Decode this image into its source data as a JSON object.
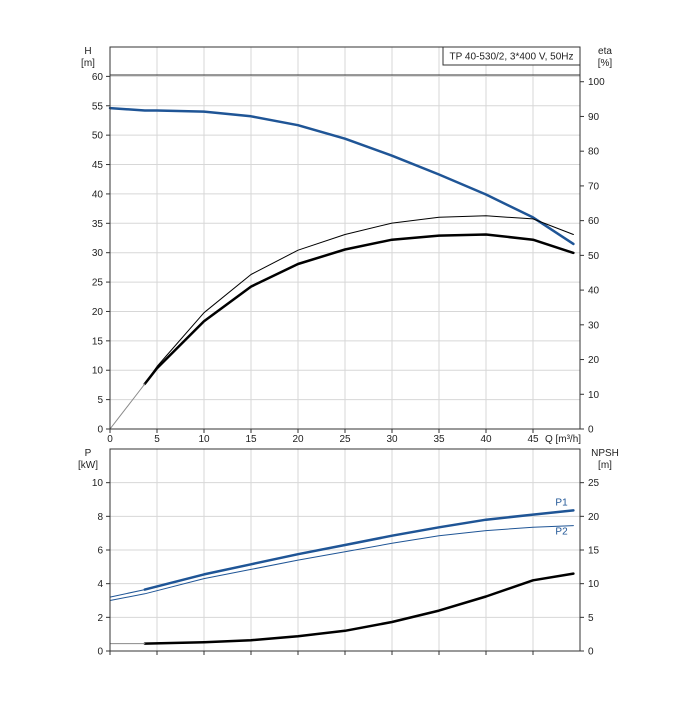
{
  "chart_data": [
    {
      "type": "line",
      "title": "TP 40-530/2, 3*400 V, 50Hz",
      "ylabel_left": "H",
      "ylabel_left_unit": "[m]",
      "ylabel_right": "eta",
      "ylabel_right_unit": "[%]",
      "xlabel": "Q [m³/h]",
      "xlim": [
        0,
        50
      ],
      "ylim_left": [
        0,
        65
      ],
      "ylim_right": [
        0,
        110
      ],
      "x_ticks": [
        0,
        5,
        10,
        15,
        20,
        25,
        30,
        35,
        40,
        45
      ],
      "x_tick_labels": [
        "0",
        "5",
        "10",
        "15",
        "20",
        "25",
        "30",
        "35",
        "40",
        "45"
      ],
      "y_left_ticks": [
        0,
        5,
        10,
        15,
        20,
        25,
        30,
        35,
        40,
        45,
        50,
        55,
        60
      ],
      "y_left_tick_labels": [
        "0",
        "5",
        "10",
        "15",
        "20",
        "25",
        "30",
        "35",
        "40",
        "45",
        "50",
        "55",
        "60"
      ],
      "y_right_ticks": [
        0,
        10,
        20,
        30,
        40,
        50,
        60,
        70,
        80,
        90,
        100
      ],
      "y_right_tick_labels": [
        "0",
        "10",
        "20",
        "30",
        "40",
        "50",
        "60",
        "70",
        "80",
        "90",
        "100"
      ],
      "grid": true,
      "series": [
        {
          "axis": "left",
          "color": "#1f5596",
          "width": 2.5,
          "x": [
            0,
            3.7,
            5,
            10,
            15,
            20,
            25,
            30,
            35,
            40,
            45,
            49.3
          ],
          "y": [
            54.6,
            54.2,
            54.2,
            54.0,
            53.2,
            51.7,
            49.4,
            46.5,
            43.3,
            39.9,
            36.0,
            31.5
          ]
        },
        {
          "axis": "left",
          "color": "#1f5596",
          "width": 1,
          "x": [
            0,
            3.7
          ],
          "y": [
            54.6,
            54.2
          ]
        },
        {
          "axis": "right",
          "color": "#000000",
          "width": 1,
          "x": [
            3.7,
            5,
            10,
            15,
            20,
            25,
            30,
            35,
            40,
            45,
            49.3
          ],
          "y": [
            13,
            18,
            33.5,
            44.5,
            51.5,
            56,
            59.3,
            61,
            61.4,
            60.5,
            56
          ]
        },
        {
          "axis": "right",
          "color": "#000000",
          "width": 2.5,
          "x": [
            3.7,
            5,
            10,
            15,
            20,
            25,
            30,
            35,
            40,
            45,
            49.3
          ],
          "y": [
            13,
            17.5,
            31,
            41,
            47.5,
            51.7,
            54.5,
            55.7,
            56,
            54.5,
            50.7
          ]
        },
        {
          "axis": "right",
          "color": "#8a8a8a",
          "width": 1,
          "x": [
            0,
            1,
            2,
            3,
            3.7
          ],
          "y": [
            0,
            3.5,
            7,
            10.5,
            13
          ]
        }
      ]
    },
    {
      "type": "line",
      "ylabel_left": "P",
      "ylabel_left_unit": "[kW]",
      "ylabel_right": "NPSH",
      "ylabel_right_unit": "[m]",
      "xlim": [
        0,
        50
      ],
      "ylim_left": [
        0,
        12
      ],
      "ylim_right": [
        0,
        30
      ],
      "y_left_ticks": [
        0,
        2,
        4,
        6,
        8,
        10
      ],
      "y_left_tick_labels": [
        "0",
        "2",
        "4",
        "6",
        "8",
        "10"
      ],
      "y_right_ticks": [
        0,
        5,
        10,
        15,
        20,
        25
      ],
      "y_right_tick_labels": [
        "0",
        "5",
        "10",
        "15",
        "20",
        "25"
      ],
      "grid": true,
      "series": [
        {
          "name": "P1",
          "axis": "left",
          "color": "#1f5596",
          "width": 2.5,
          "x": [
            3.7,
            10,
            15,
            20,
            25,
            30,
            35,
            40,
            45,
            49.3
          ],
          "y": [
            3.65,
            4.55,
            5.15,
            5.75,
            6.3,
            6.85,
            7.35,
            7.8,
            8.1,
            8.35
          ]
        },
        {
          "name": "",
          "axis": "left",
          "color": "#1f5596",
          "width": 1,
          "x": [
            0,
            3.7
          ],
          "y": [
            3.2,
            3.65
          ]
        },
        {
          "name": "P2",
          "axis": "left",
          "color": "#1f5596",
          "width": 1,
          "x": [
            0,
            3.7,
            10,
            15,
            20,
            25,
            30,
            35,
            40,
            45,
            49.3
          ],
          "y": [
            3.0,
            3.4,
            4.3,
            4.85,
            5.4,
            5.9,
            6.4,
            6.85,
            7.15,
            7.35,
            7.45
          ]
        },
        {
          "name": "",
          "axis": "right",
          "color": "#000000",
          "width": 2.5,
          "x": [
            3.7,
            10,
            15,
            20,
            25,
            30,
            35,
            40,
            45,
            49.3
          ],
          "y": [
            1.1,
            1.3,
            1.6,
            2.2,
            3.0,
            4.3,
            6.0,
            8.1,
            10.5,
            11.5
          ]
        },
        {
          "name": "",
          "axis": "right",
          "color": "#8a8a8a",
          "width": 1,
          "x": [
            0,
            3.7
          ],
          "y": [
            1.1,
            1.1
          ]
        }
      ]
    }
  ]
}
